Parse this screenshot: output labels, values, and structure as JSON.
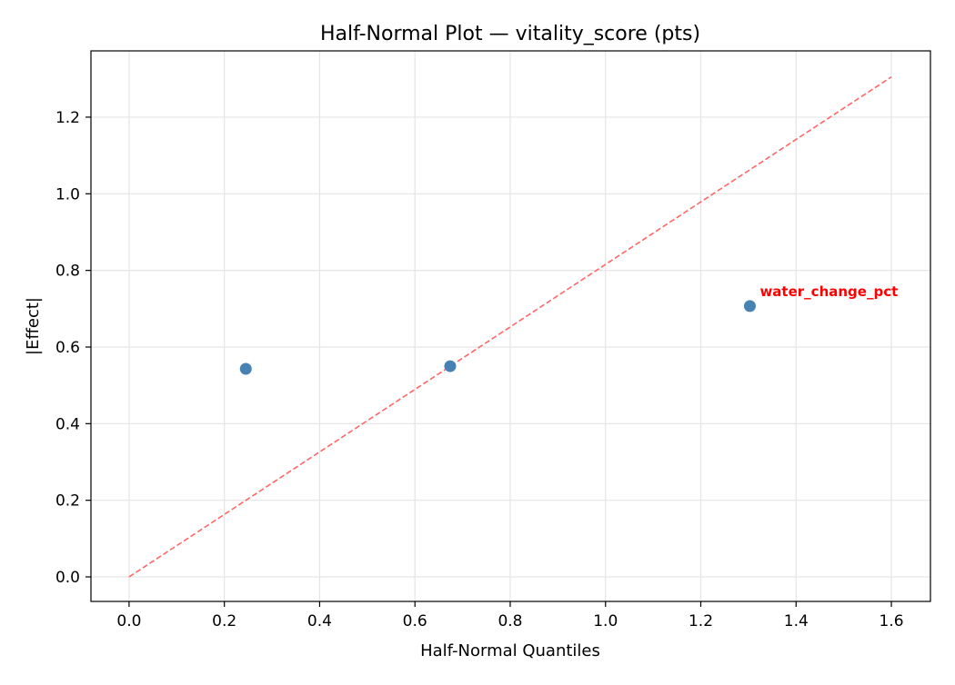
{
  "chart_data": {
    "type": "scatter",
    "title": "Half-Normal Plot — vitality_score (pts)",
    "xlabel": "Half-Normal Quantiles",
    "ylabel": "|Effect|",
    "xlim": [
      -0.08,
      1.682
    ],
    "ylim": [
      -0.064,
      1.373
    ],
    "xticks": [
      0.0,
      0.2,
      0.4,
      0.6,
      0.8,
      1.0,
      1.2,
      1.4,
      1.6
    ],
    "xtick_labels": [
      "0.0",
      "0.2",
      "0.4",
      "0.6",
      "0.8",
      "1.0",
      "1.2",
      "1.4",
      "1.6"
    ],
    "yticks": [
      0.0,
      0.2,
      0.4,
      0.6,
      0.8,
      1.0,
      1.2
    ],
    "ytick_labels": [
      "0.0",
      "0.2",
      "0.4",
      "0.6",
      "0.8",
      "1.0",
      "1.2"
    ],
    "grid": true,
    "points": [
      {
        "x": 0.245,
        "y": 0.543,
        "label": ""
      },
      {
        "x": 0.674,
        "y": 0.55,
        "label": ""
      },
      {
        "x": 1.303,
        "y": 0.707,
        "label": "water_change_pct"
      }
    ],
    "reference_line": {
      "x": [
        0.0,
        1.6
      ],
      "y": [
        0.0,
        1.305
      ],
      "style": "dashed"
    },
    "colors": {
      "points": "#4682b4",
      "reference_line": "#ff6666",
      "annotation": "#ff0000",
      "grid": "#e5e5e5"
    }
  }
}
